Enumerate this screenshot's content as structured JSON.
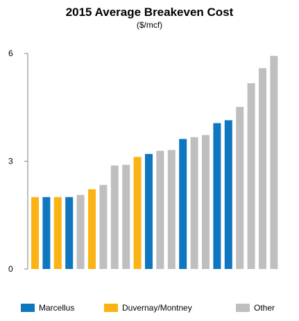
{
  "chart_data": {
    "type": "bar",
    "title": "2015 Average Breakeven Cost",
    "subtitle": "($/mcf)",
    "xlabel": "",
    "ylabel": "",
    "ylim": [
      0,
      6
    ],
    "yticks": [
      "0",
      "3",
      "6"
    ],
    "grid": false,
    "legend_placement": "bottom",
    "series": [
      {
        "name": "Marcellus",
        "color": "#0e77c0"
      },
      {
        "name": "Duvernay/Montney",
        "color": "#fbb314"
      },
      {
        "name": "Other",
        "color": "#bfbfbf"
      }
    ],
    "bars": [
      {
        "value": 2.0,
        "series": "Duvernay/Montney"
      },
      {
        "value": 2.0,
        "series": "Marcellus"
      },
      {
        "value": 2.0,
        "series": "Duvernay/Montney"
      },
      {
        "value": 2.0,
        "series": "Marcellus"
      },
      {
        "value": 2.06,
        "series": "Other"
      },
      {
        "value": 2.22,
        "series": "Duvernay/Montney"
      },
      {
        "value": 2.34,
        "series": "Other"
      },
      {
        "value": 2.88,
        "series": "Other"
      },
      {
        "value": 2.9,
        "series": "Other"
      },
      {
        "value": 3.12,
        "series": "Duvernay/Montney"
      },
      {
        "value": 3.2,
        "series": "Marcellus"
      },
      {
        "value": 3.29,
        "series": "Other"
      },
      {
        "value": 3.31,
        "series": "Other"
      },
      {
        "value": 3.62,
        "series": "Marcellus"
      },
      {
        "value": 3.67,
        "series": "Other"
      },
      {
        "value": 3.73,
        "series": "Other"
      },
      {
        "value": 4.06,
        "series": "Marcellus"
      },
      {
        "value": 4.14,
        "series": "Marcellus"
      },
      {
        "value": 4.51,
        "series": "Other"
      },
      {
        "value": 5.17,
        "series": "Other"
      },
      {
        "value": 5.59,
        "series": "Other"
      },
      {
        "value": 5.93,
        "series": "Other"
      }
    ]
  }
}
